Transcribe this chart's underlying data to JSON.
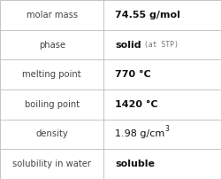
{
  "rows": [
    {
      "label": "molar mass",
      "value": "74.55 g/mol",
      "value_extra": null,
      "superscript": null
    },
    {
      "label": "phase",
      "value": "solid",
      "value_extra": "(at STP)",
      "superscript": null
    },
    {
      "label": "melting point",
      "value": "770 °C",
      "value_extra": null,
      "superscript": null
    },
    {
      "label": "boiling point",
      "value": "1420 °C",
      "value_extra": null,
      "superscript": null
    },
    {
      "label": "density",
      "value": "1.98 g/cm",
      "value_extra": null,
      "superscript": "3"
    },
    {
      "label": "solubility in water",
      "value": "soluble",
      "value_extra": null,
      "superscript": null
    }
  ],
  "col_split": 0.468,
  "bg_color": "#ffffff",
  "border_color": "#bbbbbb",
  "label_font_size": 7.2,
  "value_font_size": 8.0,
  "extra_font_size": 5.8,
  "super_font_size": 5.5,
  "label_color": "#444444",
  "value_color": "#111111",
  "extra_color": "#777777",
  "fig_width": 2.51,
  "fig_height": 2.02,
  "dpi": 100
}
